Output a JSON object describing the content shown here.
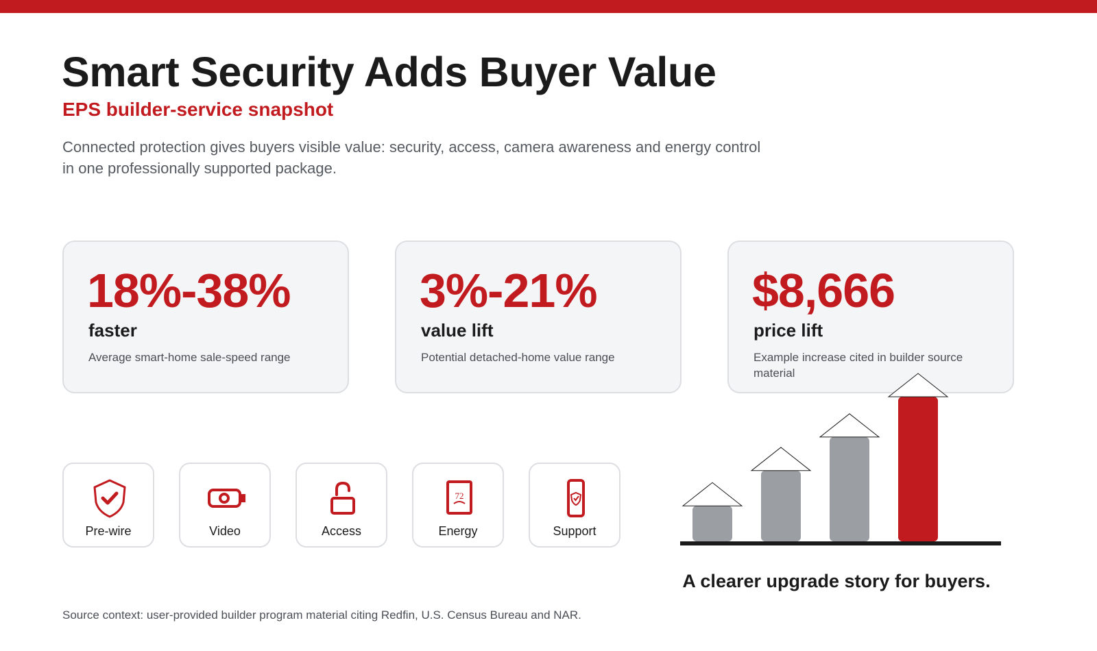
{
  "header": {
    "title": "Smart Security Adds Buyer Value",
    "subtitle": "EPS builder-service snapshot",
    "intro": "Connected protection gives buyers visible value: security, access, camera awareness and energy control in one professionally supported package."
  },
  "stats": [
    {
      "value": "18%-38%",
      "label": "faster",
      "description": "Average smart-home sale-speed range"
    },
    {
      "value": "3%-21%",
      "label": "value lift",
      "description": "Potential detached-home value range"
    },
    {
      "value": "$8,666",
      "label": "price lift",
      "description": "Example increase cited in builder source material"
    }
  ],
  "features": [
    {
      "label": "Pre-wire",
      "icon": "shield-check-icon"
    },
    {
      "label": "Video",
      "icon": "camera-icon"
    },
    {
      "label": "Access",
      "icon": "lock-icon"
    },
    {
      "label": "Energy",
      "icon": "thermostat-icon"
    },
    {
      "label": "Support",
      "icon": "phone-shield-icon"
    }
  ],
  "growth_graphic": {
    "caption": "A clearer upgrade story for buyers.",
    "levels": [
      0.35,
      0.56,
      0.76,
      1.0
    ],
    "colors": [
      "#9b9ea3",
      "#9b9ea3",
      "#9b9ea3",
      "#c21b1f"
    ]
  },
  "footer": {
    "source": "Source context: user-provided builder program material citing Redfin, U.S. Census Bureau and NAR."
  },
  "theme": {
    "accent": "#c21b1f",
    "neutral": "#9b9ea3",
    "card_bg": "#f4f5f7",
    "text": "#1b1b1b"
  }
}
